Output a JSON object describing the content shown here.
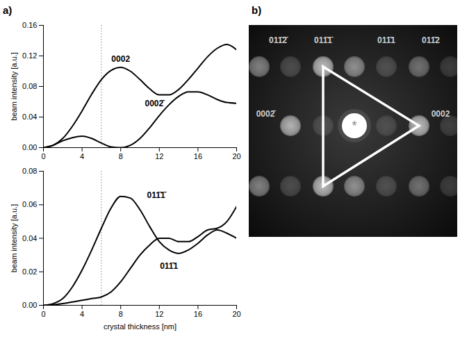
{
  "chart_data": [
    {
      "type": "line",
      "ylabel": "beam intensity [a.u.]",
      "x": [
        0,
        1,
        2,
        3,
        4,
        5,
        6,
        7,
        8,
        9,
        10,
        11,
        12,
        13,
        14,
        15,
        16,
        17,
        18,
        19,
        20
      ],
      "series": [
        {
          "name": "0002",
          "color": "#000000",
          "values": [
            0,
            0.003,
            0.012,
            0.028,
            0.048,
            0.07,
            0.089,
            0.101,
            0.105,
            0.1,
            0.089,
            0.077,
            0.069,
            0.069,
            0.076,
            0.089,
            0.104,
            0.119,
            0.13,
            0.135,
            0.128
          ]
        },
        {
          "name": "0002̄",
          "color": "#000000",
          "values": [
            0,
            0.003,
            0.009,
            0.013,
            0.015,
            0.012,
            0.006,
            0.001,
            0,
            0.003,
            0.012,
            0.026,
            0.042,
            0.056,
            0.067,
            0.073,
            0.073,
            0.069,
            0.063,
            0.059,
            0.058
          ]
        }
      ],
      "xlim": [
        0,
        20
      ],
      "xticks": [
        0,
        4,
        8,
        12,
        16,
        20
      ],
      "ylim": [
        0,
        0.16
      ],
      "yticks": [
        {
          "value": 0,
          "label": "0.00"
        },
        0.04,
        0.08,
        0.12,
        0.16
      ],
      "vline": 6
    },
    {
      "type": "line",
      "xlabel": "crystal thickness [nm]",
      "ylabel": "beam intensity [a.u.]",
      "x": [
        0,
        1,
        2,
        3,
        4,
        5,
        6,
        7,
        8,
        9,
        10,
        11,
        12,
        13,
        14,
        15,
        16,
        17,
        18,
        19,
        20
      ],
      "series": [
        {
          "name": "011̄1̄",
          "color": "#000000",
          "values": [
            0,
            0.001,
            0.004,
            0.011,
            0.021,
            0.033,
            0.046,
            0.058,
            0.065,
            0.064,
            0.057,
            0.047,
            0.038,
            0.033,
            0.031,
            0.033,
            0.037,
            0.042,
            0.045,
            0.043,
            0.04
          ]
        },
        {
          "name": "011̄1",
          "color": "#000000",
          "values": [
            0,
            0.0003,
            0.001,
            0.002,
            0.003,
            0.004,
            0.005,
            0.008,
            0.014,
            0.022,
            0.03,
            0.036,
            0.04,
            0.04,
            0.038,
            0.038,
            0.041,
            0.045,
            0.046,
            0.05,
            0.059
          ]
        }
      ],
      "xlim": [
        0,
        20
      ],
      "xticks": [
        0,
        4,
        8,
        12,
        16,
        20
      ],
      "ylim": [
        0,
        0.08
      ],
      "yticks": [
        {
          "value": 0,
          "label": "0.00"
        },
        0.02,
        0.04,
        0.06,
        0.08
      ],
      "vline": 6
    }
  ],
  "panel_labels": [
    "a)",
    "b)"
  ],
  "diffraction_pattern": {
    "labels": [
      "011̄2̄",
      "011̄1̄",
      "011̄1",
      "011̄2",
      "0002̄",
      "0002"
    ],
    "center_mark": "*"
  }
}
